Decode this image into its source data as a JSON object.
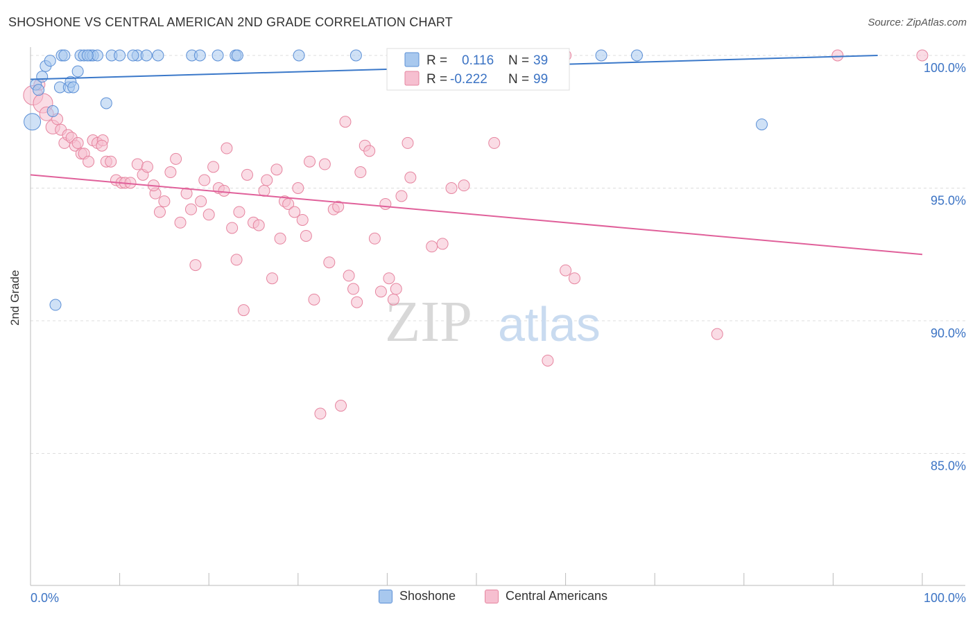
{
  "header": {
    "title": "SHOSHONE VS CENTRAL AMERICAN 2ND GRADE CORRELATION CHART",
    "source": "Source: ZipAtlas.com"
  },
  "watermark": {
    "part1": "ZIP",
    "part2": "atlas"
  },
  "colors": {
    "blue_fill": "#a8c8ee",
    "blue_stroke": "#5b8fd6",
    "blue_line": "#3a78c9",
    "pink_fill": "#f6bfd0",
    "pink_stroke": "#e6849f",
    "pink_line": "#e0609a",
    "tick_label": "#3b73c4",
    "grid": "#dddddd"
  },
  "legend_box": {
    "rows": [
      {
        "r_label": "R =",
        "r_value": "0.116",
        "n_label": "N =",
        "n_value": "39"
      },
      {
        "r_label": "R =",
        "r_value": "-0.222",
        "n_label": "N =",
        "n_value": "99"
      }
    ]
  },
  "legend_bottom": [
    "Shoshone",
    "Central Americans"
  ],
  "chart_data": {
    "type": "scatter",
    "title": "SHOSHONE VS CENTRAL AMERICAN 2ND GRADE CORRELATION CHART",
    "xlabel": "",
    "ylabel": "2nd Grade",
    "xlim": [
      0,
      100
    ],
    "ylim": [
      80.5,
      100.3
    ],
    "x_tick_labels": [
      "0.0%",
      "100.0%"
    ],
    "y_ticks": [
      100,
      95,
      90,
      85
    ],
    "y_tick_labels": [
      "100.0%",
      "95.0%",
      "90.0%",
      "85.0%"
    ],
    "grid": "horizontal dashed",
    "legend_position": "top-center",
    "series": [
      {
        "name": "Shoshone",
        "color": "blue",
        "R": 0.116,
        "N": 39,
        "trend": {
          "x": [
            0,
            95
          ],
          "y": [
            99.1,
            100.0
          ]
        },
        "points": [
          [
            0.2,
            97.5,
            12
          ],
          [
            0.6,
            98.9,
            8
          ],
          [
            0.9,
            98.7,
            8
          ],
          [
            1.3,
            99.2,
            8
          ],
          [
            1.7,
            99.6,
            8
          ],
          [
            2.2,
            99.8,
            8
          ],
          [
            2.5,
            97.9,
            8
          ],
          [
            2.8,
            90.6,
            8
          ],
          [
            3.3,
            98.8,
            8
          ],
          [
            3.5,
            100.0,
            8
          ],
          [
            3.8,
            100.0,
            8
          ],
          [
            4.3,
            98.8,
            8
          ],
          [
            4.5,
            99.0,
            8
          ],
          [
            4.8,
            98.8,
            8
          ],
          [
            5.3,
            99.4,
            8
          ],
          [
            5.6,
            100.0,
            8
          ],
          [
            6.0,
            100.0,
            8
          ],
          [
            6.7,
            100.0,
            8
          ],
          [
            7.0,
            100.0,
            8
          ],
          [
            7.5,
            100.0,
            8
          ],
          [
            8.5,
            98.2,
            8
          ],
          [
            9.1,
            100.0,
            8
          ],
          [
            10.0,
            100.0,
            8
          ],
          [
            12.0,
            100.0,
            8
          ],
          [
            14.3,
            100.0,
            8
          ],
          [
            18.1,
            100.0,
            8
          ],
          [
            19.0,
            100.0,
            8
          ],
          [
            21.0,
            100.0,
            8
          ],
          [
            23.0,
            100.0,
            8
          ],
          [
            23.2,
            100.0,
            8
          ],
          [
            30.1,
            100.0,
            8
          ],
          [
            36.5,
            100.0,
            8
          ],
          [
            42.0,
            100.0,
            8
          ],
          [
            64.0,
            100.0,
            8
          ],
          [
            68.0,
            100.0,
            8
          ],
          [
            82.0,
            97.4,
            8
          ],
          [
            11.5,
            100.0,
            8
          ],
          [
            13.0,
            100.0,
            8
          ],
          [
            6.4,
            100.0,
            8
          ]
        ]
      },
      {
        "name": "Central Americans",
        "color": "pink",
        "R": -0.222,
        "N": 99,
        "trend": {
          "x": [
            0,
            100
          ],
          "y": [
            95.5,
            92.5
          ]
        },
        "points": [
          [
            0.3,
            98.5,
            14
          ],
          [
            1.0,
            98.9,
            8
          ],
          [
            1.4,
            98.2,
            14
          ],
          [
            1.8,
            97.8,
            10
          ],
          [
            2.5,
            97.3,
            10
          ],
          [
            3.0,
            97.6,
            8
          ],
          [
            3.4,
            97.2,
            8
          ],
          [
            3.8,
            96.7,
            8
          ],
          [
            4.2,
            97.0,
            8
          ],
          [
            4.6,
            96.9,
            8
          ],
          [
            5.0,
            96.6,
            8
          ],
          [
            5.3,
            96.7,
            8
          ],
          [
            5.7,
            96.3,
            8
          ],
          [
            6.0,
            96.3,
            8
          ],
          [
            6.5,
            96.0,
            8
          ],
          [
            7.0,
            96.8,
            8
          ],
          [
            7.5,
            96.7,
            8
          ],
          [
            8.1,
            96.8,
            8
          ],
          [
            8.5,
            96.0,
            8
          ],
          [
            9.0,
            96.0,
            8
          ],
          [
            9.6,
            95.3,
            8
          ],
          [
            10.2,
            95.2,
            8
          ],
          [
            10.6,
            95.2,
            8
          ],
          [
            11.2,
            95.2,
            8
          ],
          [
            12.0,
            95.9,
            8
          ],
          [
            12.6,
            95.5,
            8
          ],
          [
            13.1,
            95.8,
            8
          ],
          [
            14.0,
            94.8,
            8
          ],
          [
            14.5,
            94.1,
            8
          ],
          [
            15.0,
            94.5,
            8
          ],
          [
            15.7,
            95.6,
            8
          ],
          [
            16.3,
            96.1,
            8
          ],
          [
            16.8,
            93.7,
            8
          ],
          [
            17.5,
            94.8,
            8
          ],
          [
            18.0,
            94.2,
            8
          ],
          [
            18.5,
            92.1,
            8
          ],
          [
            19.1,
            94.5,
            8
          ],
          [
            19.5,
            95.3,
            8
          ],
          [
            20.0,
            94.0,
            8
          ],
          [
            20.5,
            95.8,
            8
          ],
          [
            21.1,
            95.0,
            8
          ],
          [
            21.7,
            94.9,
            8
          ],
          [
            22.0,
            96.5,
            8
          ],
          [
            22.6,
            93.5,
            8
          ],
          [
            23.1,
            92.3,
            8
          ],
          [
            23.4,
            94.1,
            8
          ],
          [
            23.9,
            90.4,
            8
          ],
          [
            24.3,
            95.5,
            8
          ],
          [
            25.0,
            93.7,
            8
          ],
          [
            25.6,
            93.6,
            8
          ],
          [
            26.2,
            94.9,
            8
          ],
          [
            26.5,
            95.3,
            8
          ],
          [
            27.1,
            91.6,
            8
          ],
          [
            27.6,
            95.7,
            8
          ],
          [
            28.0,
            93.1,
            8
          ],
          [
            28.5,
            94.5,
            8
          ],
          [
            28.9,
            94.4,
            8
          ],
          [
            29.6,
            94.1,
            8
          ],
          [
            30.0,
            95.0,
            8
          ],
          [
            30.5,
            93.8,
            8
          ],
          [
            30.9,
            93.2,
            8
          ],
          [
            31.3,
            96.0,
            8
          ],
          [
            31.8,
            90.8,
            8
          ],
          [
            33.0,
            95.9,
            8
          ],
          [
            33.5,
            92.2,
            8
          ],
          [
            34.0,
            94.2,
            8
          ],
          [
            34.5,
            94.3,
            8
          ],
          [
            35.3,
            97.5,
            8
          ],
          [
            35.7,
            91.7,
            8
          ],
          [
            36.2,
            91.2,
            8
          ],
          [
            36.6,
            90.7,
            8
          ],
          [
            37.0,
            95.6,
            8
          ],
          [
            37.5,
            96.6,
            8
          ],
          [
            38.0,
            96.4,
            8
          ],
          [
            38.6,
            93.1,
            8
          ],
          [
            39.3,
            91.1,
            8
          ],
          [
            39.8,
            94.4,
            8
          ],
          [
            40.2,
            91.6,
            8
          ],
          [
            40.7,
            90.8,
            8
          ],
          [
            41.0,
            91.2,
            8
          ],
          [
            41.6,
            94.7,
            8
          ],
          [
            42.3,
            96.7,
            8
          ],
          [
            42.6,
            95.4,
            8
          ],
          [
            45.0,
            92.8,
            8
          ],
          [
            46.2,
            92.9,
            8
          ],
          [
            47.2,
            95.0,
            8
          ],
          [
            48.6,
            95.1,
            8
          ],
          [
            52.0,
            96.7,
            8
          ],
          [
            60.0,
            91.9,
            8
          ],
          [
            61.0,
            91.6,
            8
          ],
          [
            32.5,
            86.5,
            8
          ],
          [
            34.8,
            86.8,
            8
          ],
          [
            58.0,
            88.5,
            8
          ],
          [
            77.0,
            89.5,
            8
          ],
          [
            60.0,
            100.0,
            8
          ],
          [
            90.5,
            100.0,
            8
          ],
          [
            100.0,
            100.0,
            8
          ],
          [
            8.0,
            96.6,
            8
          ],
          [
            13.8,
            95.1,
            8
          ]
        ]
      }
    ]
  }
}
